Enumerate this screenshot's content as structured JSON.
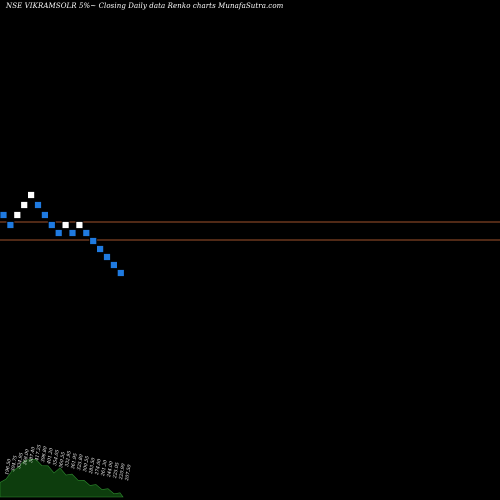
{
  "chart_data": {
    "type": "renko",
    "title": "NSE VIKRAMSOLR 5%~  Closing Daily data  Renko  charts MunafaSutra.com",
    "colors": {
      "background": "#000000",
      "up_brick": "#ffffff",
      "down_brick": "#1f7ae0",
      "brick_border": "#000000",
      "reference_line": "#a0522d",
      "volume_area": "#0d3d0d",
      "volume_outline": "#2e8b2e",
      "label_text": "#ffffff"
    },
    "bricks": [
      {
        "dir": "down",
        "level": 215
      },
      {
        "dir": "down",
        "level": 225
      },
      {
        "dir": "up",
        "level": 215
      },
      {
        "dir": "up",
        "level": 205
      },
      {
        "dir": "up",
        "level": 195
      },
      {
        "dir": "down",
        "level": 205
      },
      {
        "dir": "down",
        "level": 215
      },
      {
        "dir": "down",
        "level": 225
      },
      {
        "dir": "down",
        "level": 233
      },
      {
        "dir": "up",
        "level": 225
      },
      {
        "dir": "down",
        "level": 233
      },
      {
        "dir": "up",
        "level": 225
      },
      {
        "dir": "down",
        "level": 233
      },
      {
        "dir": "down",
        "level": 241
      },
      {
        "dir": "down",
        "level": 249
      },
      {
        "dir": "down",
        "level": 257
      },
      {
        "dir": "down",
        "level": 265
      },
      {
        "dir": "down",
        "level": 273
      }
    ],
    "reference_lines": [
      222,
      240
    ],
    "volume_labels": [
      "196.50",
      "304.75",
      "334.95",
      "368.00",
      "387.40",
      "417.25",
      "396.80",
      "401.20",
      "354.05",
      "360.55",
      "332.95",
      "361.95",
      "325.80",
      "300.55",
      "283.50",
      "274.00",
      "261.30",
      "244.00",
      "225.05",
      "220.90",
      "207.50"
    ],
    "volume_profile": [
      0.28,
      0.4,
      0.5,
      0.62,
      0.7,
      0.78,
      0.72,
      0.66,
      0.6,
      0.52,
      0.56,
      0.48,
      0.44,
      0.38,
      0.32,
      0.28,
      0.24,
      0.2,
      0.16,
      0.12,
      0.08
    ]
  }
}
